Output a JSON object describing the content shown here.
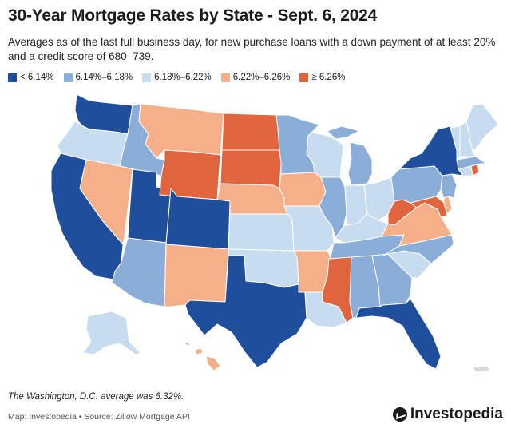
{
  "header": {
    "title": "30-Year Mortgage Rates by State - Sept. 6, 2024",
    "subtitle": "Averages as of the last full business day, for new purchase loans with a down payment of at least 20% and a credit score of 680–739."
  },
  "legend": [
    {
      "label": "< 6.14%",
      "color": "#1f4e9a"
    },
    {
      "label": "6.14%–6.18%",
      "color": "#8aaed8"
    },
    {
      "label": "6.18%–6.22%",
      "color": "#c7dcef"
    },
    {
      "label": "6.22%–6.26%",
      "color": "#f5b08a"
    },
    {
      "label": "≥ 6.26%",
      "color": "#e0643d"
    }
  ],
  "map": {
    "states": [
      {
        "name": "WA",
        "bin": 0
      },
      {
        "name": "OR",
        "bin": 2
      },
      {
        "name": "CA",
        "bin": 0
      },
      {
        "name": "ID",
        "bin": 1
      },
      {
        "name": "NV",
        "bin": 3
      },
      {
        "name": "UT",
        "bin": 0
      },
      {
        "name": "AZ",
        "bin": 1
      },
      {
        "name": "MT",
        "bin": 3
      },
      {
        "name": "WY",
        "bin": 4
      },
      {
        "name": "CO",
        "bin": 0
      },
      {
        "name": "NM",
        "bin": 3
      },
      {
        "name": "ND",
        "bin": 4
      },
      {
        "name": "SD",
        "bin": 4
      },
      {
        "name": "NE",
        "bin": 3
      },
      {
        "name": "KS",
        "bin": 2
      },
      {
        "name": "OK",
        "bin": 2
      },
      {
        "name": "TX",
        "bin": 0
      },
      {
        "name": "MN",
        "bin": 1
      },
      {
        "name": "IA",
        "bin": 3
      },
      {
        "name": "MO",
        "bin": 2
      },
      {
        "name": "AR",
        "bin": 3
      },
      {
        "name": "LA",
        "bin": 2
      },
      {
        "name": "WI",
        "bin": 2
      },
      {
        "name": "IL",
        "bin": 1
      },
      {
        "name": "MI",
        "bin": 1
      },
      {
        "name": "IN",
        "bin": 2
      },
      {
        "name": "OH",
        "bin": 2
      },
      {
        "name": "KY",
        "bin": 2
      },
      {
        "name": "TN",
        "bin": 1
      },
      {
        "name": "MS",
        "bin": 4
      },
      {
        "name": "AL",
        "bin": 1
      },
      {
        "name": "GA",
        "bin": 1
      },
      {
        "name": "FL",
        "bin": 0
      },
      {
        "name": "SC",
        "bin": 2
      },
      {
        "name": "NC",
        "bin": 1
      },
      {
        "name": "VA",
        "bin": 3
      },
      {
        "name": "WV",
        "bin": 4
      },
      {
        "name": "MD",
        "bin": 4
      },
      {
        "name": "DE",
        "bin": 3
      },
      {
        "name": "PA",
        "bin": 1
      },
      {
        "name": "NJ",
        "bin": 1
      },
      {
        "name": "NY",
        "bin": 0
      },
      {
        "name": "CT",
        "bin": 2
      },
      {
        "name": "RI",
        "bin": 4
      },
      {
        "name": "MA",
        "bin": 1
      },
      {
        "name": "VT",
        "bin": 2
      },
      {
        "name": "NH",
        "bin": 2
      },
      {
        "name": "ME",
        "bin": 2
      },
      {
        "name": "AK",
        "bin": 2
      },
      {
        "name": "HI",
        "bin": 3
      },
      {
        "name": "PR",
        "bin": -1
      }
    ],
    "no_data_color": "#d9d9d9"
  },
  "footnote": "The Washington, D.C. average was 6.32%.",
  "source": "Map: Investopedia • Source: Zillow Mortgage API",
  "brand": "Investopedia"
}
